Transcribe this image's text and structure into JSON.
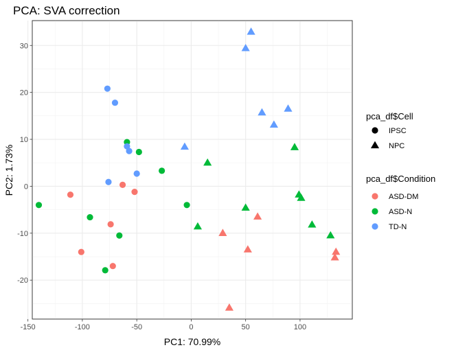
{
  "chart_data": {
    "type": "scatter",
    "title": "PCA: SVA correction",
    "xlabel": "PC1: 70.99%",
    "ylabel": "PC2: 1.73%",
    "xlim": [
      -146,
      148
    ],
    "ylim": [
      -28.3,
      35.3
    ],
    "xticks": [
      -150,
      -100,
      -50,
      0,
      50,
      100
    ],
    "yticks": [
      -20,
      -10,
      0,
      10,
      20,
      30
    ],
    "xtick_labels": [
      "-150",
      "-100",
      "-50",
      "0",
      "50",
      "100"
    ],
    "ytick_labels": [
      "-20",
      "-10",
      "0",
      "10",
      "20",
      "30"
    ],
    "grid": true,
    "legend_position": "right",
    "shape_legend": {
      "title": "pca_df$Cell",
      "items": [
        {
          "label": "IPSC",
          "shape": "circle"
        },
        {
          "label": "NPC",
          "shape": "triangle"
        }
      ]
    },
    "color_legend": {
      "title": "pca_df$Condition",
      "items": [
        {
          "label": "ASD-DM",
          "color": "#F8766D"
        },
        {
          "label": "ASD-N",
          "color": "#00BA38"
        },
        {
          "label": "TD-N",
          "color": "#619CFF"
        }
      ]
    },
    "points": [
      {
        "x": -111,
        "y": -1.8,
        "cell": "IPSC",
        "condition": "ASD-DM"
      },
      {
        "x": -63,
        "y": 0.3,
        "cell": "IPSC",
        "condition": "ASD-DM"
      },
      {
        "x": -52,
        "y": -1.2,
        "cell": "IPSC",
        "condition": "ASD-DM"
      },
      {
        "x": -74,
        "y": -8.1,
        "cell": "IPSC",
        "condition": "ASD-DM"
      },
      {
        "x": -101,
        "y": -14.0,
        "cell": "IPSC",
        "condition": "ASD-DM"
      },
      {
        "x": -72,
        "y": -17.0,
        "cell": "IPSC",
        "condition": "ASD-DM"
      },
      {
        "x": -140,
        "y": -4.0,
        "cell": "IPSC",
        "condition": "ASD-N"
      },
      {
        "x": -93,
        "y": -6.6,
        "cell": "IPSC",
        "condition": "ASD-N"
      },
      {
        "x": -66,
        "y": -10.5,
        "cell": "IPSC",
        "condition": "ASD-N"
      },
      {
        "x": -79,
        "y": -17.9,
        "cell": "IPSC",
        "condition": "ASD-N"
      },
      {
        "x": -59,
        "y": 9.4,
        "cell": "IPSC",
        "condition": "ASD-N"
      },
      {
        "x": -48,
        "y": 7.3,
        "cell": "IPSC",
        "condition": "ASD-N"
      },
      {
        "x": -27,
        "y": 3.3,
        "cell": "IPSC",
        "condition": "ASD-N"
      },
      {
        "x": -4,
        "y": -4.0,
        "cell": "IPSC",
        "condition": "ASD-N"
      },
      {
        "x": -77,
        "y": 20.8,
        "cell": "IPSC",
        "condition": "TD-N"
      },
      {
        "x": -70,
        "y": 17.8,
        "cell": "IPSC",
        "condition": "TD-N"
      },
      {
        "x": -59,
        "y": 8.5,
        "cell": "IPSC",
        "condition": "TD-N"
      },
      {
        "x": -57,
        "y": 7.5,
        "cell": "IPSC",
        "condition": "TD-N"
      },
      {
        "x": -50,
        "y": 2.7,
        "cell": "IPSC",
        "condition": "TD-N"
      },
      {
        "x": -76,
        "y": 0.9,
        "cell": "IPSC",
        "condition": "TD-N"
      },
      {
        "x": 29,
        "y": -10.0,
        "cell": "NPC",
        "condition": "ASD-DM"
      },
      {
        "x": 52,
        "y": -13.5,
        "cell": "NPC",
        "condition": "ASD-DM"
      },
      {
        "x": 61,
        "y": -6.5,
        "cell": "NPC",
        "condition": "ASD-DM"
      },
      {
        "x": 35,
        "y": -25.9,
        "cell": "NPC",
        "condition": "ASD-DM"
      },
      {
        "x": 133,
        "y": -14.0,
        "cell": "NPC",
        "condition": "ASD-DM"
      },
      {
        "x": 132,
        "y": -15.2,
        "cell": "NPC",
        "condition": "ASD-DM"
      },
      {
        "x": 15,
        "y": 5.0,
        "cell": "NPC",
        "condition": "ASD-N"
      },
      {
        "x": 6,
        "y": -8.6,
        "cell": "NPC",
        "condition": "ASD-N"
      },
      {
        "x": 50,
        "y": -4.6,
        "cell": "NPC",
        "condition": "ASD-N"
      },
      {
        "x": 95,
        "y": 8.3,
        "cell": "NPC",
        "condition": "ASD-N"
      },
      {
        "x": 99,
        "y": -1.8,
        "cell": "NPC",
        "condition": "ASD-N"
      },
      {
        "x": 101,
        "y": -2.5,
        "cell": "NPC",
        "condition": "ASD-N"
      },
      {
        "x": 111,
        "y": -8.2,
        "cell": "NPC",
        "condition": "ASD-N"
      },
      {
        "x": 128,
        "y": -10.5,
        "cell": "NPC",
        "condition": "ASD-N"
      },
      {
        "x": 55,
        "y": 32.9,
        "cell": "NPC",
        "condition": "TD-N"
      },
      {
        "x": 50,
        "y": 29.4,
        "cell": "NPC",
        "condition": "TD-N"
      },
      {
        "x": 65,
        "y": 15.7,
        "cell": "NPC",
        "condition": "TD-N"
      },
      {
        "x": 76,
        "y": 13.1,
        "cell": "NPC",
        "condition": "TD-N"
      },
      {
        "x": 89,
        "y": 16.5,
        "cell": "NPC",
        "condition": "TD-N"
      },
      {
        "x": -6,
        "y": 8.4,
        "cell": "NPC",
        "condition": "TD-N"
      }
    ]
  }
}
